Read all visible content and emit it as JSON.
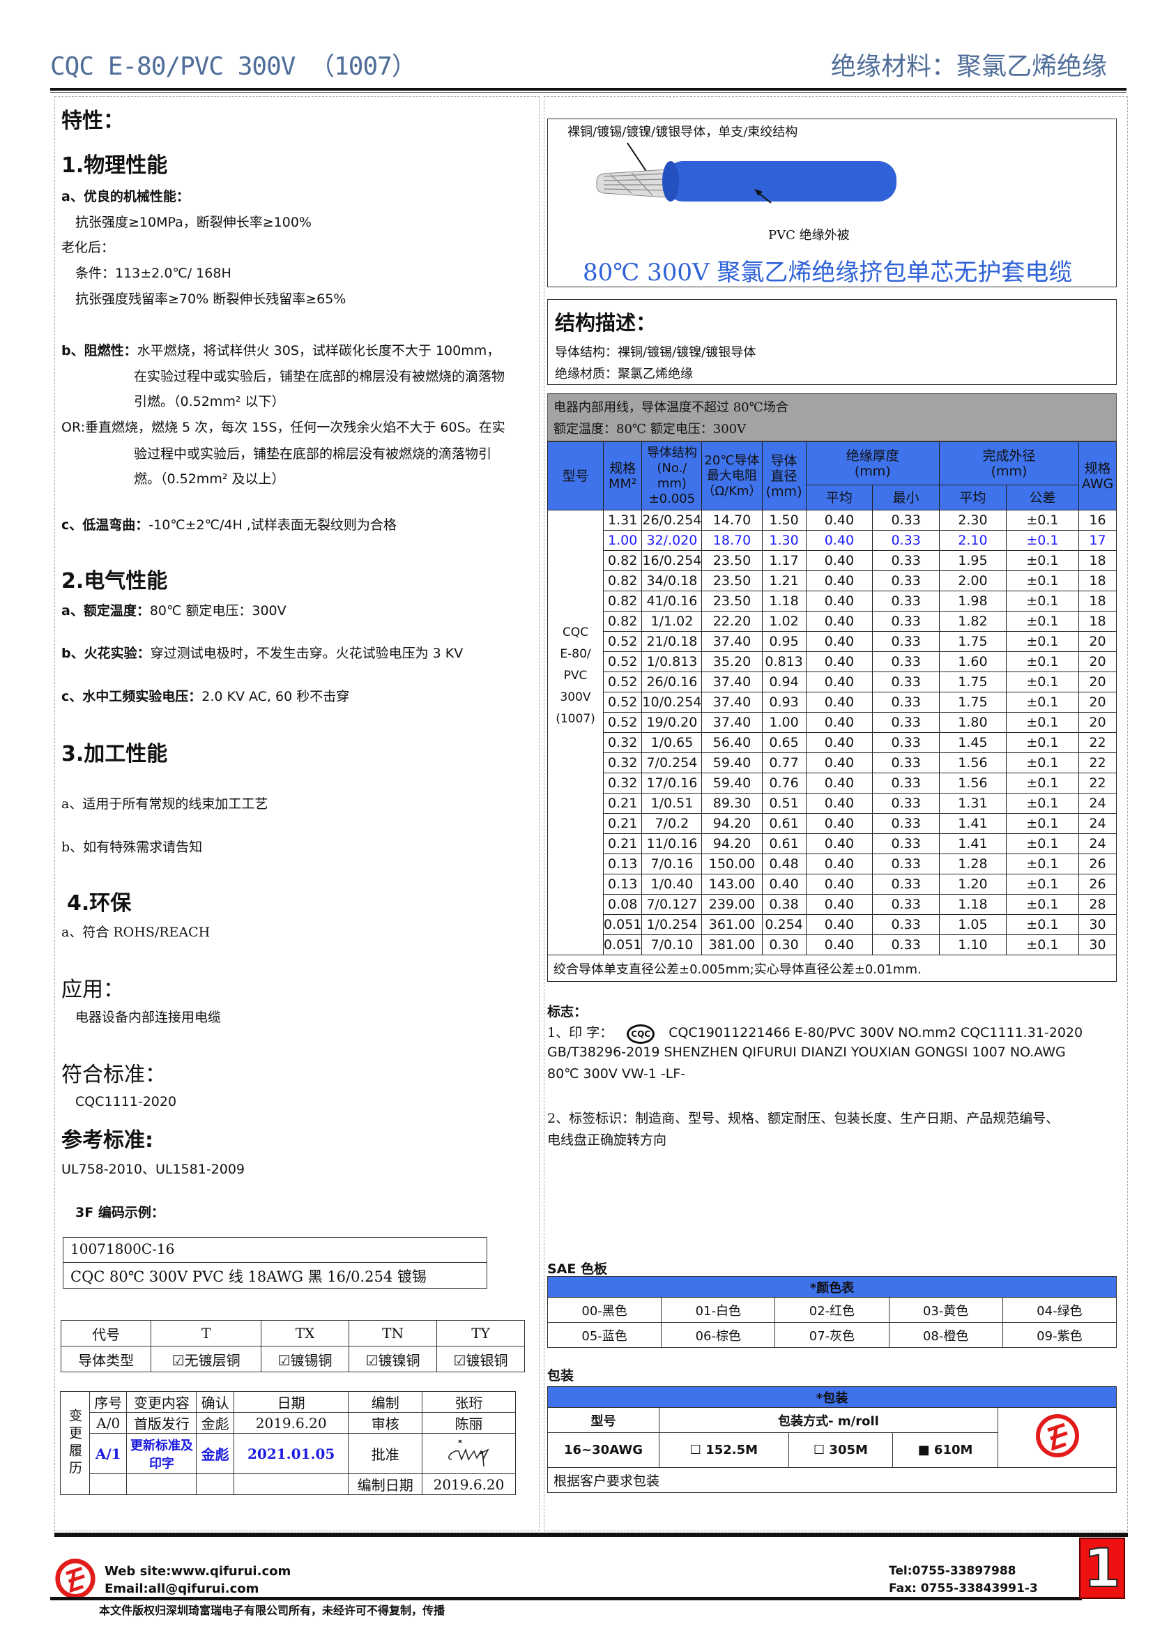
{
  "header": {
    "title": "CQC E-80/PVC 300V （1007）",
    "category": "绝缘材料：聚氯乙烯绝缘"
  },
  "left": {
    "features_title": "特性：",
    "physical": {
      "title": "1.物理性能",
      "a_label": "a、优良的机械性能：",
      "a_line1": "抗张强度≥10MPa，断裂伸长率≥100%",
      "aging": "老化后：",
      "condition": "条件：113±2.0℃/ 168H",
      "retention": "抗张强度残留率≥70%  断裂伸长残留率≥65%",
      "b_label": "b、阻燃性：",
      "b_line1": "水平燃烧，将试样供火 30S，试样碳化长度不大于 100mm，",
      "b_line2": "在实验过程中或实验后，铺垫在底部的棉层没有被燃烧的滴落物",
      "b_line3": "引燃。（0.52mm² 以下）",
      "or_line1": "OR:垂直燃烧，燃烧 5 次，每次 15S，任何一次残余火焰不大于 60S。在实",
      "or_line2": "验过程中或实验后，铺垫在底部的棉层没有被燃烧的滴落物引",
      "or_line3": "燃。（0.52mm² 及以上）",
      "c_label": "c、低温弯曲：",
      "c_text": "-10℃±2℃/4H ,试样表面无裂纹则为合格"
    },
    "electrical": {
      "title": "2.电气性能",
      "a_label": "a、额定温度：",
      "a_text": "80℃    额定电压：300V",
      "b_label": "b、火花实验：",
      "b_text": "穿过测试电极时，不发生击穿。火花试验电压为 3 KV",
      "c_label": "c、水中工频实验电压：",
      "c_text": "2.0 KV AC, 60 秒不击穿"
    },
    "processing": {
      "title": "3.加工性能",
      "a": "a、适用于所有常规的线束加工工艺",
      "b": "b、如有特殊需求请告知"
    },
    "env": {
      "title": "4.环保",
      "a": "a、符合 ROHS/REACH"
    },
    "application": {
      "title": "应用：",
      "text": "电器设备内部连接用电缆"
    },
    "standard": {
      "title": "符合标准：",
      "text": "CQC1111-2020"
    },
    "reference": {
      "title": "参考标准:",
      "text": "UL758-2010、UL1581-2009"
    },
    "code_example": {
      "title": "3F 编码示例：",
      "line1": "10071800C-16",
      "line2": "CQC 80℃  300V PVC 线    18AWG  黑  16/0.254 镀锡"
    },
    "code_table": {
      "headers": [
        "代号",
        "T",
        "TX",
        "TN",
        "TY"
      ],
      "row": [
        "导体类型",
        "☑无镀层铜",
        "☑镀锡铜",
        "☑镀镍铜",
        "☑镀银铜"
      ]
    },
    "history": {
      "side_label": "变更履历",
      "headers": [
        "序号",
        "变更内容",
        "确认",
        "日期",
        "编制",
        "张珩"
      ],
      "rows": [
        [
          "A/0",
          "首版发行",
          "金彪",
          "2019.6.20",
          "审核",
          "陈丽"
        ],
        [
          "A/1",
          "更新标准及印字",
          "金彪",
          "2021.01.05",
          "批准",
          ""
        ],
        [
          "",
          "",
          "",
          "",
          "编制日期",
          "2019.6.20"
        ]
      ]
    }
  },
  "right": {
    "image": {
      "conductor_label": "裸铜/镀锡/镀镍/镀银导体，单支/束绞结构",
      "sheath_label": "PVC  绝缘外被",
      "title": "80℃  300V 聚氯乙烯绝缘挤包单芯无护套电缆",
      "sheath_color": "#2f62d8"
    },
    "structure": {
      "title": "结构描述：",
      "conductor": "导体结构：裸铜/镀锡/镀镍/镀银导体",
      "insulation": "绝缘材质：聚氯乙烯绝缘"
    },
    "usage": {
      "line1": "电器内部用线，导体温度不超过 80℃场合",
      "line2": "额定温度：80℃   额定电压：300V"
    },
    "spec_table": {
      "h_model": "型号",
      "h_size": "规格\nMM²",
      "h_struct": "导体结构\n(No./\nmm)\n±0.005",
      "h_res": "20℃导体\n最大电阻\n（Ω/Km）",
      "h_dia": "导体\n直径\n(mm)",
      "h_ins": "绝缘厚度\n(mm)",
      "h_od": "完成外径\n(mm)",
      "h_awg": "规格\nAWG",
      "h_avg": "平均",
      "h_min": "最小",
      "h_avg2": "平均",
      "h_tol": "公差",
      "model": "CQC\nE-80/\nPVC\n300V\n(1007)",
      "rows": [
        [
          "1.31",
          "26/0.254",
          "14.70",
          "1.50",
          "0.40",
          "0.33",
          "2.30",
          "±0.1",
          "16"
        ],
        [
          "1.00",
          "32/.020",
          "18.70",
          "1.30",
          "0.40",
          "0.33",
          "2.10",
          "±0.1",
          "17"
        ],
        [
          "0.82",
          "16/0.254",
          "23.50",
          "1.17",
          "0.40",
          "0.33",
          "1.95",
          "±0.1",
          "18"
        ],
        [
          "0.82",
          "34/0.18",
          "23.50",
          "1.21",
          "0.40",
          "0.33",
          "2.00",
          "±0.1",
          "18"
        ],
        [
          "0.82",
          "41/0.16",
          "23.50",
          "1.18",
          "0.40",
          "0.33",
          "1.98",
          "±0.1",
          "18"
        ],
        [
          "0.82",
          "1/1.02",
          "22.20",
          "1.02",
          "0.40",
          "0.33",
          "1.82",
          "±0.1",
          "18"
        ],
        [
          "0.52",
          "21/0.18",
          "37.40",
          "0.95",
          "0.40",
          "0.33",
          "1.75",
          "±0.1",
          "20"
        ],
        [
          "0.52",
          "1/0.813",
          "35.20",
          "0.813",
          "0.40",
          "0.33",
          "1.60",
          "±0.1",
          "20"
        ],
        [
          "0.52",
          "26/0.16",
          "37.40",
          "0.94",
          "0.40",
          "0.33",
          "1.75",
          "±0.1",
          "20"
        ],
        [
          "0.52",
          "10/0.254",
          "37.40",
          "0.93",
          "0.40",
          "0.33",
          "1.75",
          "±0.1",
          "20"
        ],
        [
          "0.52",
          "19/0.20",
          "37.40",
          "1.00",
          "0.40",
          "0.33",
          "1.80",
          "±0.1",
          "20"
        ],
        [
          "0.32",
          "1/0.65",
          "56.40",
          "0.65",
          "0.40",
          "0.33",
          "1.45",
          "±0.1",
          "22"
        ],
        [
          "0.32",
          "7/0.254",
          "59.40",
          "0.77",
          "0.40",
          "0.33",
          "1.56",
          "±0.1",
          "22"
        ],
        [
          "0.32",
          "17/0.16",
          "59.40",
          "0.76",
          "0.40",
          "0.33",
          "1.56",
          "±0.1",
          "22"
        ],
        [
          "0.21",
          "1/0.51",
          "89.30",
          "0.51",
          "0.40",
          "0.33",
          "1.31",
          "±0.1",
          "24"
        ],
        [
          "0.21",
          "7/0.2",
          "94.20",
          "0.61",
          "0.40",
          "0.33",
          "1.41",
          "±0.1",
          "24"
        ],
        [
          "0.21",
          "11/0.16",
          "94.20",
          "0.61",
          "0.40",
          "0.33",
          "1.41",
          "±0.1",
          "24"
        ],
        [
          "0.13",
          "7/0.16",
          "150.00",
          "0.48",
          "0.40",
          "0.33",
          "1.28",
          "±0.1",
          "26"
        ],
        [
          "0.13",
          "1/0.40",
          "143.00",
          "0.40",
          "0.40",
          "0.33",
          "1.20",
          "±0.1",
          "26"
        ],
        [
          "0.08",
          "7/0.127",
          "239.00",
          "0.38",
          "0.40",
          "0.33",
          "1.18",
          "±0.1",
          "28"
        ],
        [
          "0.051",
          "1/0.254",
          "361.00",
          "0.254",
          "0.40",
          "0.33",
          "1.05",
          "±0.1",
          "30"
        ],
        [
          "0.051",
          "7/0.10",
          "381.00",
          "0.30",
          "0.40",
          "0.33",
          "1.10",
          "±0.1",
          "30"
        ]
      ],
      "highlight_row": 1,
      "note": "绞合导体单支直径公差±0.005mm;实心导体直径公差±0.01mm."
    },
    "marking": {
      "title": "标志：",
      "p1_label": "1、印 字：",
      "cqc_logo": "CQC",
      "p1_line1": "CQC19011221466   E-80/PVC   300V   NO.mm2   CQC1111.31-2020",
      "p1_line2": "GB/T38296-2019 SHENZHEN QIFURUI DIANZI YOUXIAN GONGSI      1007 NO.AWG",
      "p1_line3": "80℃  300V VW-1 -LF-",
      "p2_line1": "2、标签标识：制造商、型号、规格、额定耐压、包装长度、生产日期、产品规范编号、",
      "p2_line2": "电线盘正确旋转方向"
    },
    "colors": {
      "title": "SAE 色板",
      "header": "*颜色表",
      "row1": [
        "00-黑色",
        "01-白色",
        "02-红色",
        "03-黄色",
        "04-绿色"
      ],
      "row2": [
        "05-蓝色",
        "06-棕色",
        "07-灰色",
        "08-橙色",
        "09-紫色"
      ]
    },
    "packing": {
      "title": "包装",
      "header": "*包装",
      "h_model": "型号",
      "h_method": "包装方式- m/roll",
      "model": "16~30AWG",
      "opt1": "☐  152.5M",
      "opt2": "☐  305M",
      "opt3": "■  610M",
      "note": "根据客户要求包装"
    }
  },
  "footer": {
    "web": "Web site:www.qifurui.com",
    "email": "Email:all@qifurui.com",
    "tel": "Tel:0755-33897988",
    "fax": "Fax: 0755-33843991-3",
    "page": "1",
    "copyright": "本文件版权归深圳琦富瑞电子有限公司所有，未经许可不得复制，传播",
    "brand_color": "#e21b1b"
  }
}
